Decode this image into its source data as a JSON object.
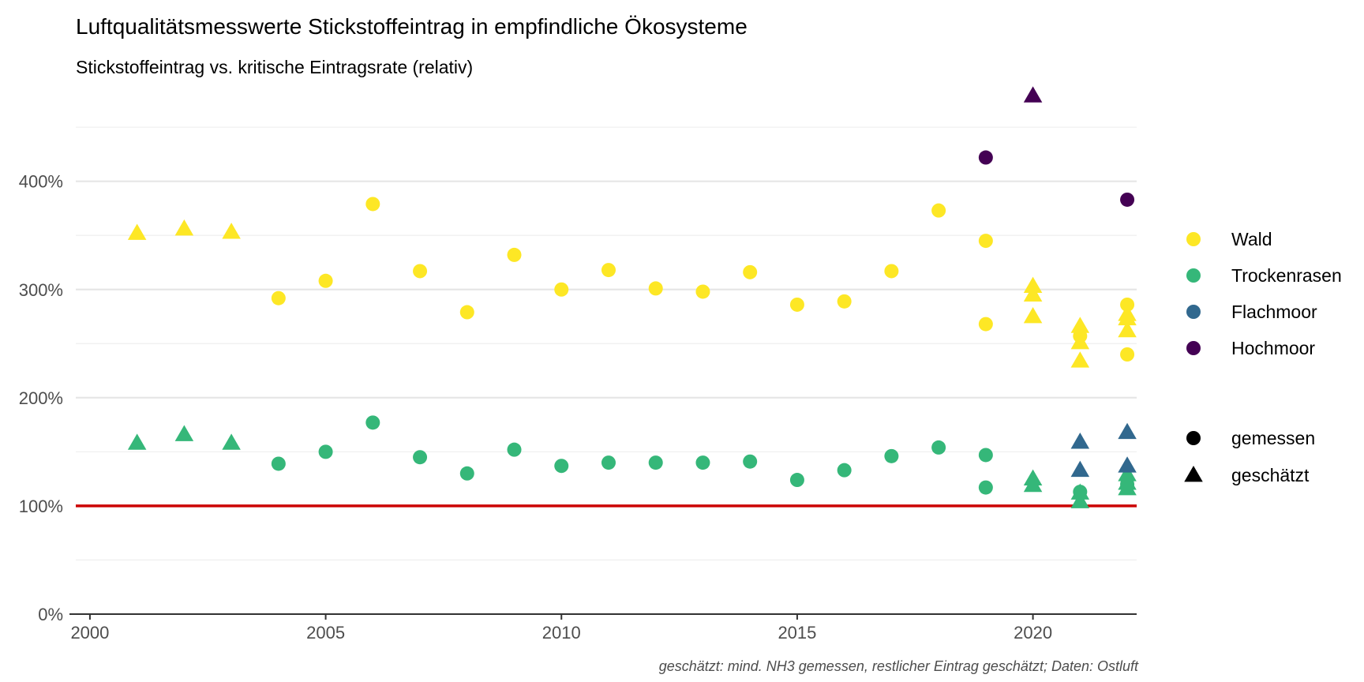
{
  "title": "Luftqualitätsmesswerte Stickstoffeintrag in empfindliche Ökosysteme",
  "subtitle": "Stickstoffeintrag vs. kritische Eintragsrate (relativ)",
  "caption": "geschätzt: mind. NH3 gemessen, restlicher Eintrag geschätzt; Daten: Ostluft",
  "chart_data": {
    "type": "scatter",
    "xlim": [
      1999.7,
      2022.2
    ],
    "ylim": [
      0,
      480
    ],
    "x_ticks": [
      2000,
      2005,
      2010,
      2015,
      2020
    ],
    "x_tick_labels": [
      "2000",
      "2005",
      "2010",
      "2015",
      "2020"
    ],
    "y_ticks": [
      0,
      100,
      200,
      300,
      400
    ],
    "y_tick_labels": [
      "0%",
      "100%",
      "200%",
      "300%",
      "400%"
    ],
    "y_minor_ticks": [
      50,
      150,
      250,
      350,
      450
    ],
    "grid": true,
    "reference_line": {
      "y": 100,
      "color": "#cc0000"
    },
    "legend_position": "right",
    "ecosystems": [
      {
        "name": "Wald",
        "color": "#fde725"
      },
      {
        "name": "Trockenrasen",
        "color": "#35b779"
      },
      {
        "name": "Flachmoor",
        "color": "#31688e"
      },
      {
        "name": "Hochmoor",
        "color": "#440154"
      }
    ],
    "methods": [
      {
        "name": "gemessen",
        "shape": "circle"
      },
      {
        "name": "geschätzt",
        "shape": "triangle"
      }
    ],
    "series": [
      {
        "ecosystem": "Wald",
        "method": "gemessen",
        "points": [
          [
            2004,
            292
          ],
          [
            2005,
            308
          ],
          [
            2006,
            379
          ],
          [
            2007,
            317
          ],
          [
            2008,
            279
          ],
          [
            2009,
            332
          ],
          [
            2010,
            300
          ],
          [
            2011,
            318
          ],
          [
            2012,
            301
          ],
          [
            2013,
            298
          ],
          [
            2014,
            316
          ],
          [
            2015,
            286
          ],
          [
            2016,
            289
          ],
          [
            2017,
            317
          ],
          [
            2018,
            373
          ],
          [
            2019,
            345
          ],
          [
            2019,
            268
          ],
          [
            2021,
            257
          ],
          [
            2022,
            286
          ],
          [
            2022,
            240
          ]
        ]
      },
      {
        "ecosystem": "Wald",
        "method": "geschätzt",
        "points": [
          [
            2001,
            352
          ],
          [
            2002,
            356
          ],
          [
            2003,
            353
          ],
          [
            2020,
            303
          ],
          [
            2020,
            295
          ],
          [
            2020,
            275
          ],
          [
            2021,
            266
          ],
          [
            2021,
            251
          ],
          [
            2021,
            234
          ],
          [
            2022,
            277
          ],
          [
            2022,
            273
          ],
          [
            2022,
            262
          ]
        ]
      },
      {
        "ecosystem": "Trockenrasen",
        "method": "gemessen",
        "points": [
          [
            2004,
            139
          ],
          [
            2005,
            150
          ],
          [
            2006,
            177
          ],
          [
            2007,
            145
          ],
          [
            2008,
            130
          ],
          [
            2009,
            152
          ],
          [
            2010,
            137
          ],
          [
            2011,
            140
          ],
          [
            2012,
            140
          ],
          [
            2013,
            140
          ],
          [
            2014,
            141
          ],
          [
            2015,
            124
          ],
          [
            2016,
            133
          ],
          [
            2017,
            146
          ],
          [
            2018,
            154
          ],
          [
            2019,
            147
          ],
          [
            2019,
            117
          ],
          [
            2021,
            113
          ],
          [
            2022,
            120
          ]
        ]
      },
      {
        "ecosystem": "Trockenrasen",
        "method": "geschätzt",
        "points": [
          [
            2001,
            158
          ],
          [
            2002,
            166
          ],
          [
            2003,
            158
          ],
          [
            2020,
            125
          ],
          [
            2020,
            119
          ],
          [
            2021,
            112
          ],
          [
            2021,
            104
          ],
          [
            2022,
            129
          ],
          [
            2022,
            121
          ],
          [
            2022,
            116
          ]
        ]
      },
      {
        "ecosystem": "Flachmoor",
        "method": "geschätzt",
        "points": [
          [
            2021,
            159
          ],
          [
            2021,
            133
          ],
          [
            2022,
            168
          ],
          [
            2022,
            137
          ]
        ]
      },
      {
        "ecosystem": "Hochmoor",
        "method": "gemessen",
        "points": [
          [
            2019,
            422
          ],
          [
            2022,
            383
          ]
        ]
      },
      {
        "ecosystem": "Hochmoor",
        "method": "geschätzt",
        "points": [
          [
            2020,
            479
          ]
        ]
      }
    ]
  }
}
